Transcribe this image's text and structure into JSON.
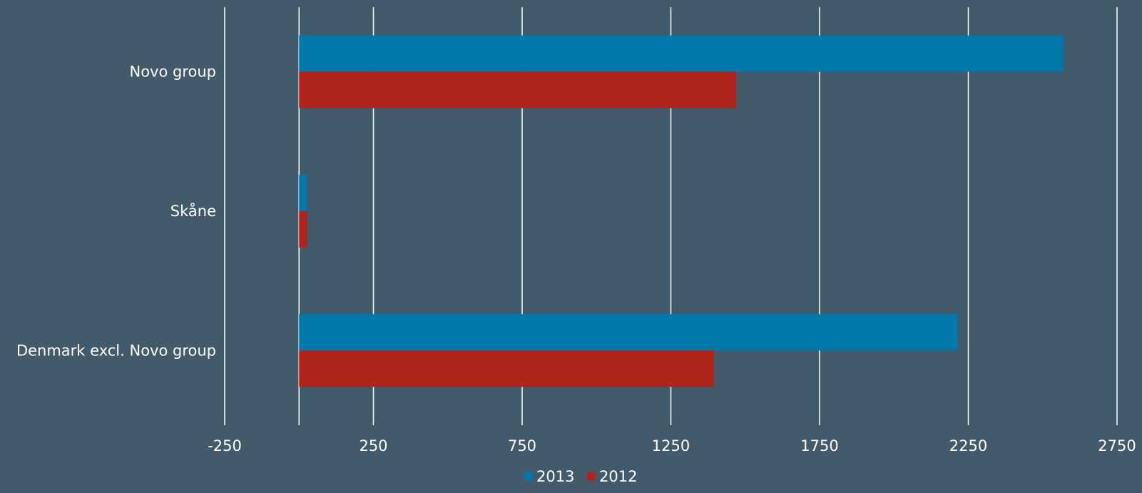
{
  "chart_data": {
    "type": "bar",
    "orientation": "horizontal",
    "categories": [
      "Novo group",
      "Skåne",
      "Denmark excl. Novo group"
    ],
    "series": [
      {
        "name": "2013",
        "color": "#0078aa",
        "values": [
          2570,
          28,
          2215
        ]
      },
      {
        "name": "2012",
        "color": "#b0241b",
        "values": [
          1470,
          28,
          1395
        ]
      }
    ],
    "x_ticks": [
      "-250",
      "250",
      "750",
      "1250",
      "1750",
      "2250",
      "2750"
    ],
    "xlim": [
      -250,
      2750
    ],
    "grid": true,
    "legend": "bottom",
    "colors": {
      "background": "#435a6a",
      "grid": "#ffffff",
      "text": "#ffffff"
    }
  }
}
